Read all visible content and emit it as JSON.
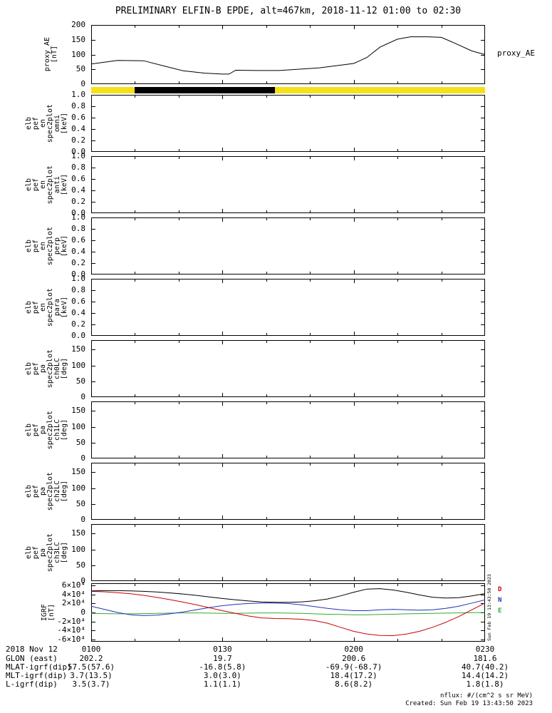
{
  "title": "PRELIMINARY ELFIN-B EPDE, alt=467km, 2018-11-12 01:00 to 02:30",
  "watermark": "Sun Feb 19 13:43:50 2023",
  "footer": {
    "nflux": "nflux: #/(cm^2 s sr MeV)",
    "created": "Created: Sun Feb 19 13:43:50 2023"
  },
  "x_axis": {
    "date_label": "2018 Nov 12",
    "ticks": [
      "0100",
      "0130",
      "0200",
      "0230"
    ],
    "tick_minutes": [
      0,
      30,
      60,
      90
    ]
  },
  "bottom_rows": [
    {
      "label": "GLON (east)",
      "values": [
        "202.2",
        "19.7",
        "200.6",
        "181.6"
      ]
    },
    {
      "label": "MLAT-igrf(dip)",
      "values": [
        "57.5(57.6)",
        "-16.8(5.8)",
        "-69.9(-68.7)",
        "40.7(40.2)"
      ]
    },
    {
      "label": "MLT-igrf(dip)",
      "values": [
        "3.7(13.5)",
        "3.0(3.0)",
        "18.4(17.2)",
        "14.4(14.2)"
      ]
    },
    {
      "label": "L-igrf(dip)",
      "values": [
        "3.5(3.7)",
        "1.1(1.1)",
        "8.6(8.2)",
        "1.8(1.8)"
      ]
    }
  ],
  "chart_data": [
    {
      "type": "line",
      "name": "proxy_ae",
      "right_label": "proxy_AE",
      "ylabel_lines": [
        "proxy_AE",
        "[nT]"
      ],
      "ylim": [
        0,
        200
      ],
      "yticks": [
        0,
        50,
        100,
        150,
        200
      ],
      "ytick_labels": [
        "0",
        "50",
        "100",
        "150",
        "200"
      ],
      "xlim_minutes": [
        0,
        90
      ],
      "line_color": "#000000",
      "x_minutes": [
        0,
        6,
        12,
        17,
        21,
        26,
        30,
        31.5,
        33,
        38,
        43,
        47,
        52,
        57,
        60,
        63,
        66,
        70,
        73,
        77,
        80,
        83,
        87,
        90
      ],
      "values": [
        68,
        80,
        79,
        60,
        45,
        37,
        34,
        34,
        47,
        46,
        46,
        50,
        55,
        64,
        70,
        90,
        125,
        152,
        160,
        160,
        158,
        139,
        112,
        100
      ]
    },
    {
      "type": "timeline-bar",
      "name": "availability",
      "base_color": "#f5e01c",
      "xlim_minutes": [
        0,
        90
      ],
      "segments": [
        {
          "start": 10,
          "end": 42,
          "color": "#000000"
        }
      ]
    },
    {
      "type": "spectrogram",
      "name": "elb_pef_en_spec2plot_omni",
      "ylabel_lines": [
        "elb",
        "pef",
        "en",
        "spec2plot",
        "omni",
        "[keV]"
      ],
      "ylim": [
        0,
        1
      ],
      "yticks": [
        0,
        0.2,
        0.4,
        0.6,
        0.8,
        1
      ],
      "ytick_labels": [
        "0.0",
        "0.2",
        "0.4",
        "0.6",
        "0.8",
        "1.0"
      ],
      "values": []
    },
    {
      "type": "spectrogram",
      "name": "elb_pef_en_spec2plot_anti",
      "ylabel_lines": [
        "elb",
        "pef",
        "en",
        "spec2plot",
        "anti",
        "[keV]"
      ],
      "ylim": [
        0,
        1
      ],
      "yticks": [
        0,
        0.2,
        0.4,
        0.6,
        0.8,
        1
      ],
      "ytick_labels": [
        "0.0",
        "0.2",
        "0.4",
        "0.6",
        "0.8",
        "1.0"
      ],
      "values": []
    },
    {
      "type": "spectrogram",
      "name": "elb_pef_en_spec2plot_perp",
      "ylabel_lines": [
        "elb",
        "pef",
        "en",
        "spec2plot",
        "perp",
        "[keV]"
      ],
      "ylim": [
        0,
        1
      ],
      "yticks": [
        0,
        0.2,
        0.4,
        0.6,
        0.8,
        1
      ],
      "ytick_labels": [
        "0.0",
        "0.2",
        "0.4",
        "0.6",
        "0.8",
        "1.0"
      ],
      "values": []
    },
    {
      "type": "spectrogram",
      "name": "elb_pef_en_spec2plot_para",
      "ylabel_lines": [
        "elb",
        "pef",
        "en",
        "spec2plot",
        "para",
        "[keV]"
      ],
      "ylim": [
        0,
        1
      ],
      "yticks": [
        0,
        0.2,
        0.4,
        0.6,
        0.8,
        1
      ],
      "ytick_labels": [
        "0.0",
        "0.2",
        "0.4",
        "0.6",
        "0.8",
        "1.0"
      ],
      "values": []
    },
    {
      "type": "spectrogram",
      "name": "elb_pef_pa_spec2plot_ch0LC",
      "ylabel_lines": [
        "elb",
        "pef",
        "pa",
        "spec2plot",
        "ch0LC",
        "[deg]"
      ],
      "ylim": [
        0,
        180
      ],
      "yticks": [
        0,
        50,
        100,
        150
      ],
      "ytick_labels": [
        "0",
        "50",
        "100",
        "150"
      ],
      "values": []
    },
    {
      "type": "spectrogram",
      "name": "elb_pef_pa_spec2plot_ch1LC",
      "ylabel_lines": [
        "elb",
        "pef",
        "pa",
        "spec2plot",
        "ch1LC",
        "[deg]"
      ],
      "ylim": [
        0,
        180
      ],
      "yticks": [
        0,
        50,
        100,
        150
      ],
      "ytick_labels": [
        "0",
        "50",
        "100",
        "150"
      ],
      "values": []
    },
    {
      "type": "spectrogram",
      "name": "elb_pef_pa_spec2plot_ch2LC",
      "ylabel_lines": [
        "elb",
        "pef",
        "pa",
        "spec2plot",
        "ch2LC",
        "[deg]"
      ],
      "ylim": [
        0,
        180
      ],
      "yticks": [
        0,
        50,
        100,
        150
      ],
      "ytick_labels": [
        "0",
        "50",
        "100",
        "150"
      ],
      "values": []
    },
    {
      "type": "spectrogram",
      "name": "elb_pef_pa_spec2plot_ch3LC",
      "ylabel_lines": [
        "elb",
        "pef",
        "pa",
        "spec2plot",
        "ch3LC",
        "[deg]"
      ],
      "ylim": [
        0,
        180
      ],
      "yticks": [
        0,
        50,
        100,
        150
      ],
      "ytick_labels": [
        "0",
        "50",
        "100",
        "150"
      ],
      "values": []
    },
    {
      "type": "line",
      "name": "igrf",
      "ylabel_lines": [
        "IGRF",
        "[nT]"
      ],
      "ylim": [
        -65000,
        65000
      ],
      "yticks": [
        -60000,
        -40000,
        -20000,
        0,
        20000,
        40000,
        60000
      ],
      "ytick_labels": [
        "-6×10⁴",
        "-4×10⁴",
        "-2×10⁴",
        "0",
        "2×10⁴",
        "4×10⁴",
        "6×10⁴"
      ],
      "xlim_minutes": [
        0,
        90
      ],
      "x_minutes": [
        0,
        3,
        6,
        9,
        12,
        15,
        18,
        21,
        24,
        27,
        30,
        33,
        36,
        39,
        42,
        45,
        48,
        51,
        54,
        57,
        60,
        63,
        66,
        69,
        72,
        75,
        78,
        81,
        84,
        87,
        90
      ],
      "series": [
        {
          "name": "B",
          "color": "#000000",
          "values": [
            48000,
            48500,
            48500,
            48000,
            47000,
            45500,
            43500,
            41000,
            38000,
            34500,
            31000,
            28000,
            25500,
            23500,
            22500,
            22500,
            23500,
            26000,
            30000,
            37000,
            45000,
            52000,
            53000,
            50000,
            45000,
            39000,
            34000,
            32000,
            33000,
            37000,
            42000
          ]
        },
        {
          "name": "D",
          "color": "#cc0000",
          "values": [
            47000,
            46000,
            44000,
            41500,
            38000,
            33500,
            28500,
            23000,
            17000,
            10500,
            4000,
            -2000,
            -8000,
            -12000,
            -13500,
            -14000,
            -15000,
            -18000,
            -24000,
            -33000,
            -42000,
            -48000,
            -51000,
            -51500,
            -48000,
            -42000,
            -33000,
            -22000,
            -9000,
            6000,
            21000
          ]
        },
        {
          "name": "N",
          "color": "#2233bb",
          "values": [
            14000,
            7000,
            0,
            -5000,
            -7000,
            -6000,
            -3000,
            1000,
            6000,
            11000,
            15000,
            18000,
            20000,
            21000,
            21000,
            20000,
            17000,
            13000,
            9000,
            6000,
            4000,
            4000,
            6000,
            7000,
            6000,
            5000,
            6000,
            9000,
            14000,
            21000,
            28000
          ]
        },
        {
          "name": "E",
          "color": "#33aa33",
          "values": [
            -2000,
            -2500,
            -3000,
            -3000,
            -2500,
            -2000,
            -1500,
            -1000,
            -1000,
            -1500,
            -2000,
            -2000,
            -1500,
            -1000,
            -1000,
            -1500,
            -2000,
            -3000,
            -4000,
            -4500,
            -5000,
            -5000,
            -4500,
            -4000,
            -3000,
            -2500,
            -2000,
            -1500,
            -1000,
            -500,
            0
          ]
        }
      ],
      "legend": [
        {
          "label": "D",
          "color": "#cc0000"
        },
        {
          "label": "N",
          "color": "#2233bb"
        },
        {
          "label": "E",
          "color": "#33aa33"
        }
      ]
    }
  ]
}
